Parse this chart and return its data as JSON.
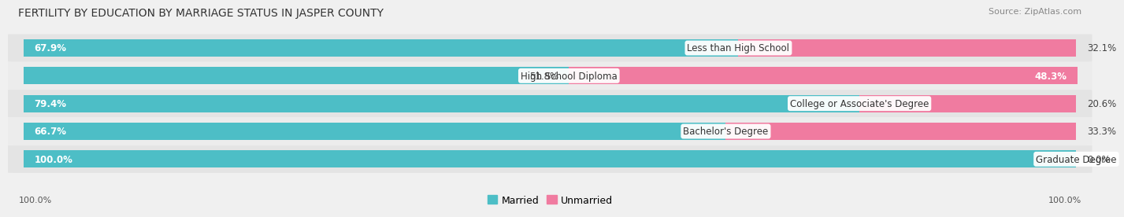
{
  "title": "FERTILITY BY EDUCATION BY MARRIAGE STATUS IN JASPER COUNTY",
  "source": "Source: ZipAtlas.com",
  "categories": [
    "Less than High School",
    "High School Diploma",
    "College or Associate's Degree",
    "Bachelor's Degree",
    "Graduate Degree"
  ],
  "married": [
    67.9,
    51.8,
    79.4,
    66.7,
    100.0
  ],
  "unmarried": [
    32.1,
    48.3,
    20.6,
    33.3,
    0.0
  ],
  "married_color": "#4DBEC6",
  "unmarried_color": "#F07BA0",
  "title_fontsize": 10,
  "label_fontsize": 8.5,
  "legend_fontsize": 9,
  "source_fontsize": 8
}
